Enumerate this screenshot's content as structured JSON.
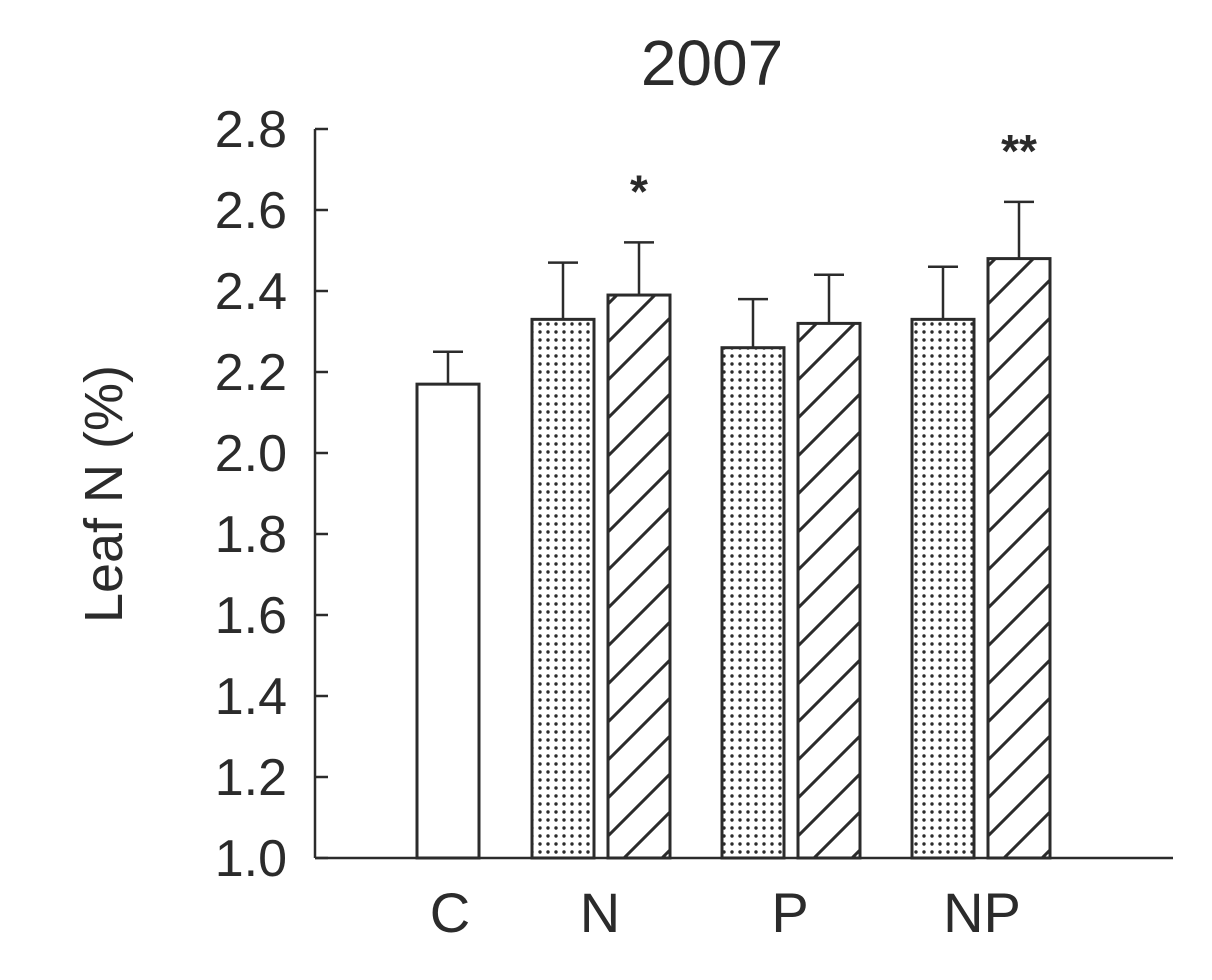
{
  "chart_data": {
    "type": "bar",
    "title": "2007",
    "ylabel": "Leaf N (%)",
    "xlabel": "",
    "ylim": [
      1.0,
      2.8
    ],
    "yticks": [
      "1.0",
      "1.2",
      "1.4",
      "1.6",
      "1.8",
      "2.0",
      "2.2",
      "2.4",
      "2.6",
      "2.8"
    ],
    "categories": [
      "C",
      "N",
      "P",
      "NP"
    ],
    "grid": false,
    "legend": "none",
    "colors": {
      "ink": "#2b2b2b",
      "fill": "#ffffff"
    },
    "bars": [
      {
        "category": "C",
        "pattern": "open",
        "value": 2.17,
        "error": 0.08,
        "annotation": ""
      },
      {
        "category": "N",
        "pattern": "dotted",
        "value": 2.33,
        "error": 0.14,
        "annotation": ""
      },
      {
        "category": "N",
        "pattern": "hatched",
        "value": 2.39,
        "error": 0.13,
        "annotation": "*"
      },
      {
        "category": "P",
        "pattern": "dotted",
        "value": 2.26,
        "error": 0.12,
        "annotation": ""
      },
      {
        "category": "P",
        "pattern": "hatched",
        "value": 2.32,
        "error": 0.12,
        "annotation": ""
      },
      {
        "category": "NP",
        "pattern": "dotted",
        "value": 2.33,
        "error": 0.13,
        "annotation": ""
      },
      {
        "category": "NP",
        "pattern": "hatched",
        "value": 2.48,
        "error": 0.14,
        "annotation": "**"
      }
    ]
  }
}
